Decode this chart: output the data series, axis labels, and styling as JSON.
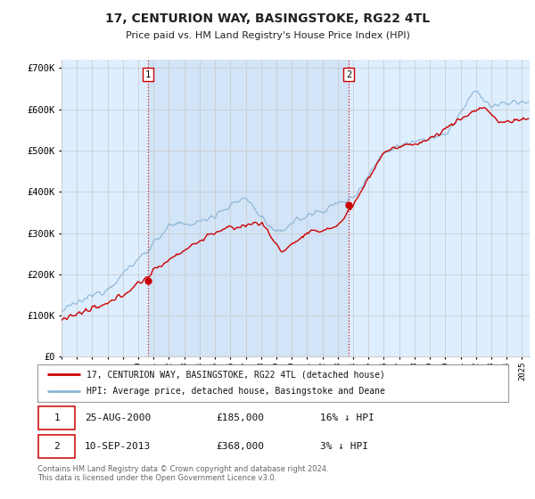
{
  "title": "17, CENTURION WAY, BASINGSTOKE, RG22 4TL",
  "subtitle": "Price paid vs. HM Land Registry's House Price Index (HPI)",
  "legend_line1": "17, CENTURION WAY, BASINGSTOKE, RG22 4TL (detached house)",
  "legend_line2": "HPI: Average price, detached house, Basingstoke and Deane",
  "sale1_date": "25-AUG-2000",
  "sale1_price": "£185,000",
  "sale1_hpi": "16% ↓ HPI",
  "sale2_date": "10-SEP-2013",
  "sale2_price": "£368,000",
  "sale2_hpi": "3% ↓ HPI",
  "footer": "Contains HM Land Registry data © Crown copyright and database right 2024.\nThis data is licensed under the Open Government Licence v3.0.",
  "hpi_color": "#8ab4d4",
  "price_color": "#cc0000",
  "bg_color": "#ddeeff",
  "highlight_color": "#c5daf0",
  "plot_bg": "#ffffff",
  "grid_color": "#c8c8c8",
  "sale_marker_color": "#cc0000",
  "dashed_line_color": "#cc0000",
  "ylim": [
    0,
    720000
  ],
  "yticks": [
    0,
    100000,
    200000,
    300000,
    400000,
    500000,
    600000,
    700000
  ],
  "ytick_labels": [
    "£0",
    "£100K",
    "£200K",
    "£300K",
    "£400K",
    "£500K",
    "£600K",
    "£700K"
  ],
  "sale1_year": 2000.646,
  "sale1_value": 185000,
  "sale2_year": 2013.703,
  "sale2_value": 368000,
  "xlim_start": 1995.0,
  "xlim_end": 2025.5
}
